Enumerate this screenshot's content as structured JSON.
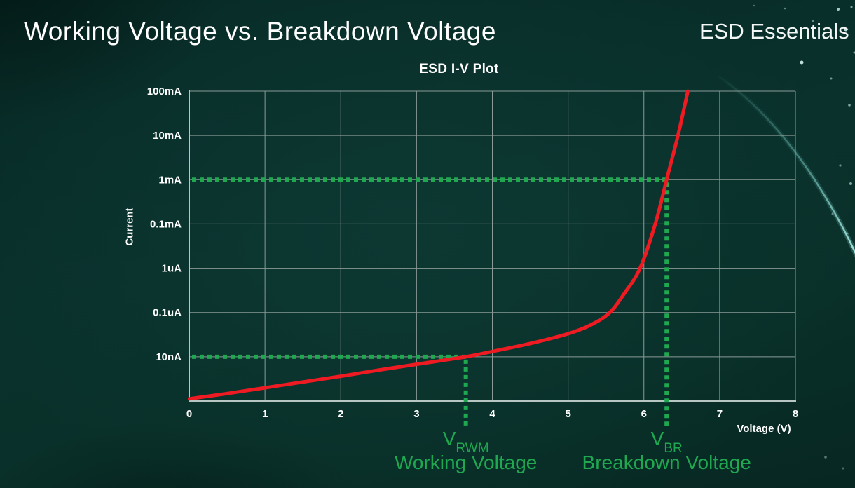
{
  "page": {
    "title": "Working Voltage vs. Breakdown Voltage",
    "brand": "ESD Essentials"
  },
  "colors": {
    "background": "#0a2f2b",
    "text": "#ffffff",
    "grid": "#8a9a97",
    "axis": "#b7c6c3",
    "curve_red": "#ee1b23",
    "annotation_green": "#1fa850",
    "swoosh_teal": "#7fd8d0"
  },
  "chart_data": {
    "type": "line",
    "title": "ESD I-V Plot",
    "xlabel": "Voltage (V)",
    "ylabel": "Current",
    "xlim": [
      0,
      8
    ],
    "x_ticks": [
      "0",
      "1",
      "2",
      "3",
      "4",
      "5",
      "6",
      "7",
      "8"
    ],
    "y_ticks": [
      "100mA",
      "10mA",
      "1mA",
      "0.1mA",
      "1uA",
      "0.1uA",
      "10nA"
    ],
    "y_scale": "log",
    "y_note": "series points are [voltage_V, grid_rows_above_bottom_axis]; one row equals one labeled horizontal division",
    "grid": true,
    "legend": "none",
    "series": [
      {
        "name": "ESD I-V curve",
        "color": "#ee1b23",
        "points": [
          [
            0,
            0.05
          ],
          [
            0.5,
            0.17
          ],
          [
            1,
            0.3
          ],
          [
            1.5,
            0.43
          ],
          [
            2,
            0.56
          ],
          [
            2.5,
            0.7
          ],
          [
            3,
            0.83
          ],
          [
            3.65,
            1
          ],
          [
            4,
            1.12
          ],
          [
            4.5,
            1.3
          ],
          [
            5,
            1.52
          ],
          [
            5.3,
            1.72
          ],
          [
            5.55,
            2
          ],
          [
            5.75,
            2.45
          ],
          [
            5.95,
            3
          ],
          [
            6.15,
            4
          ],
          [
            6.3,
            5
          ],
          [
            6.45,
            6
          ],
          [
            6.58,
            7
          ]
        ]
      }
    ],
    "annotations": [
      {
        "symbol": "V",
        "subscript": "RWM",
        "caption": "Working Voltage",
        "voltage": 3.65,
        "level_row": 1,
        "level_label": "10nA",
        "color": "#1fa850"
      },
      {
        "symbol": "V",
        "subscript": "BR",
        "caption": "Breakdown Voltage",
        "voltage": 6.3,
        "level_row": 5,
        "level_label": "1mA",
        "color": "#1fa850"
      }
    ]
  }
}
